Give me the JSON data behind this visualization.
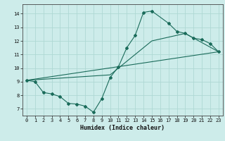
{
  "xlabel": "Humidex (Indice chaleur)",
  "ylabel": "",
  "bg_color": "#cdecea",
  "grid_color": "#aed8d4",
  "line_color": "#1a6b5a",
  "xlim": [
    -0.5,
    23.5
  ],
  "ylim": [
    6.5,
    14.7
  ],
  "xticks": [
    0,
    1,
    2,
    3,
    4,
    5,
    6,
    7,
    8,
    9,
    10,
    11,
    12,
    13,
    14,
    15,
    16,
    17,
    18,
    19,
    20,
    21,
    22,
    23
  ],
  "yticks": [
    7,
    8,
    9,
    10,
    11,
    12,
    13,
    14
  ],
  "main_line": {
    "x": [
      0,
      1,
      2,
      3,
      4,
      5,
      6,
      7,
      8,
      9,
      10,
      11,
      12,
      13,
      14,
      15,
      17,
      18,
      19,
      20,
      21,
      22,
      23
    ],
    "y": [
      9.1,
      9.0,
      8.2,
      8.1,
      7.9,
      7.4,
      7.35,
      7.2,
      6.75,
      7.75,
      9.3,
      10.1,
      11.5,
      12.4,
      14.1,
      14.2,
      13.3,
      12.7,
      12.55,
      12.2,
      12.1,
      11.8,
      11.2
    ]
  },
  "line2": {
    "x": [
      0,
      23
    ],
    "y": [
      9.1,
      11.2
    ]
  },
  "line3": {
    "x": [
      0,
      10,
      15,
      19,
      23
    ],
    "y": [
      9.1,
      9.5,
      12.0,
      12.55,
      11.2
    ]
  }
}
